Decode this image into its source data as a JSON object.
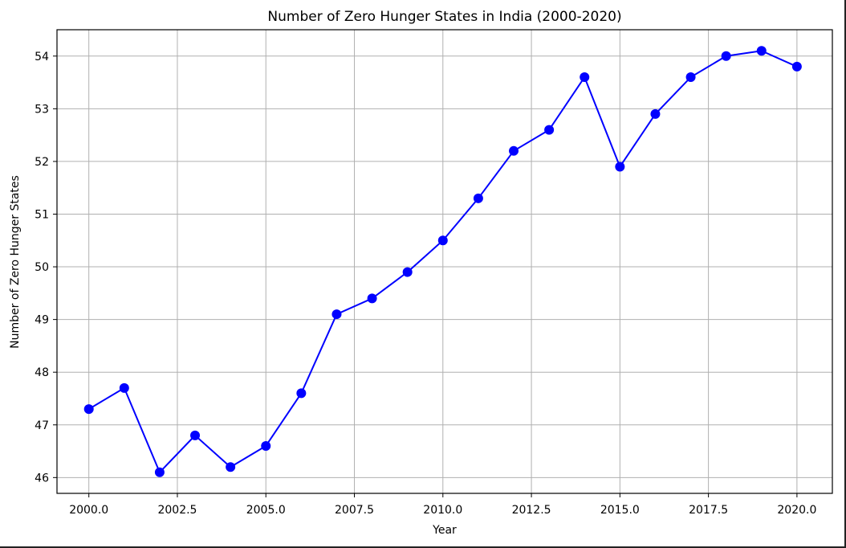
{
  "chart_data": {
    "type": "line",
    "title": "Number of Zero Hunger States in India (2000-2020)",
    "xlabel": "Year",
    "ylabel": "Number of Zero Hunger States",
    "xlim": [
      1999.1,
      2021.0
    ],
    "ylim": [
      45.7,
      54.5
    ],
    "x_ticks": [
      2000.0,
      2002.5,
      2005.0,
      2007.5,
      2010.0,
      2012.5,
      2015.0,
      2017.5,
      2020.0
    ],
    "x_tick_labels": [
      "2000.0",
      "2002.5",
      "2005.0",
      "2007.5",
      "2010.0",
      "2012.5",
      "2015.0",
      "2017.5",
      "2020.0"
    ],
    "y_ticks": [
      46,
      47,
      48,
      49,
      50,
      51,
      52,
      53,
      54
    ],
    "y_tick_labels": [
      "46",
      "47",
      "48",
      "49",
      "50",
      "51",
      "52",
      "53",
      "54"
    ],
    "grid": true,
    "series": [
      {
        "color": "#0000ff",
        "marker": "circle",
        "x": [
          2000,
          2001,
          2002,
          2003,
          2004,
          2005,
          2006,
          2007,
          2008,
          2009,
          2010,
          2011,
          2012,
          2013,
          2014,
          2015,
          2016,
          2017,
          2018,
          2019,
          2020
        ],
        "y": [
          47.3,
          47.7,
          46.1,
          46.8,
          46.2,
          46.6,
          47.6,
          49.1,
          49.4,
          49.9,
          50.5,
          51.3,
          52.2,
          52.6,
          53.6,
          51.9,
          52.9,
          53.6,
          54.0,
          54.1,
          53.8
        ]
      }
    ]
  }
}
